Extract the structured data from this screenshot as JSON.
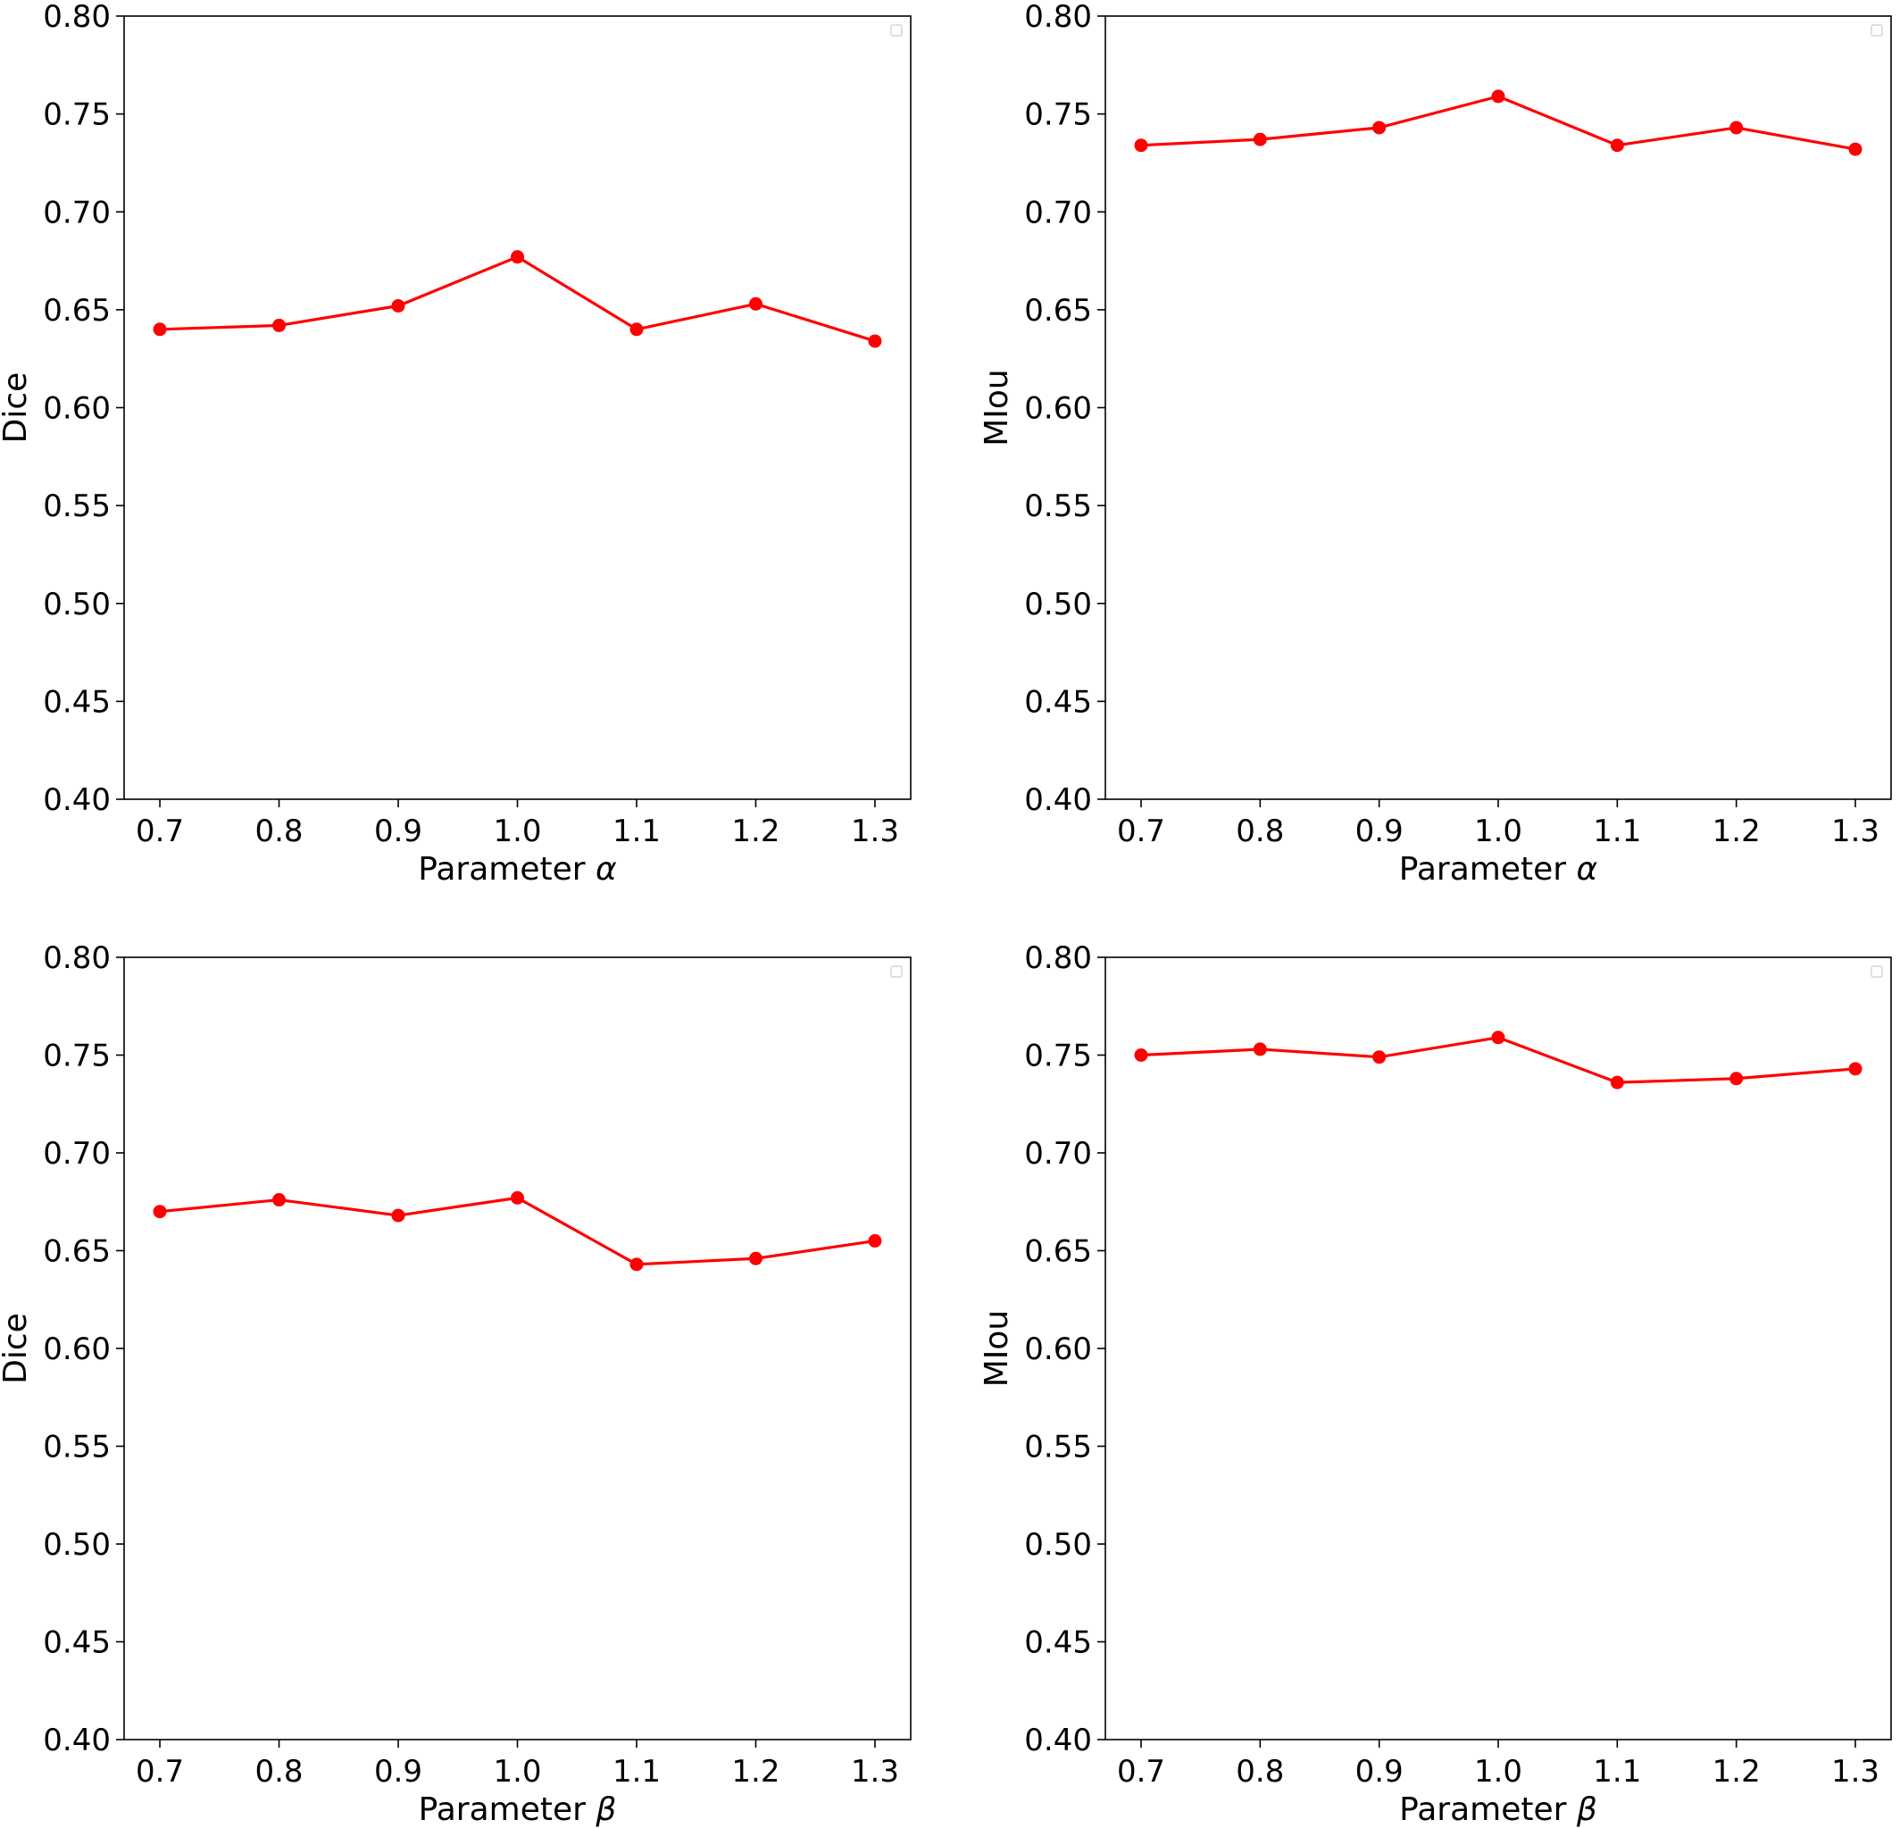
{
  "chart_data": [
    {
      "type": "line",
      "xlabel": "Parameter",
      "xlabel_symbol": "α",
      "ylabel": "Dice",
      "x": [
        0.7,
        0.8,
        0.9,
        1.0,
        1.1,
        1.2,
        1.3
      ],
      "x_tick_labels": [
        "0.7",
        "0.8",
        "0.9",
        "1.0",
        "1.1",
        "1.2",
        "1.3"
      ],
      "y_tick_labels": [
        "0.40",
        "0.45",
        "0.50",
        "0.55",
        "0.60",
        "0.65",
        "0.70",
        "0.75",
        "0.80"
      ],
      "ylim": [
        0.4,
        0.8
      ],
      "series": [
        {
          "values": [
            0.64,
            0.642,
            0.652,
            0.677,
            0.64,
            0.653,
            0.634
          ],
          "color": "#ff0000",
          "marker": "circle"
        }
      ],
      "legend": "top-right (empty)",
      "grid": false
    },
    {
      "type": "line",
      "xlabel": "Parameter",
      "xlabel_symbol": "α",
      "ylabel": "MIou",
      "x": [
        0.7,
        0.8,
        0.9,
        1.0,
        1.1,
        1.2,
        1.3
      ],
      "x_tick_labels": [
        "0.7",
        "0.8",
        "0.9",
        "1.0",
        "1.1",
        "1.2",
        "1.3"
      ],
      "y_tick_labels": [
        "0.40",
        "0.45",
        "0.50",
        "0.55",
        "0.60",
        "0.65",
        "0.70",
        "0.75",
        "0.80"
      ],
      "ylim": [
        0.4,
        0.8
      ],
      "series": [
        {
          "values": [
            0.734,
            0.737,
            0.743,
            0.759,
            0.734,
            0.743,
            0.732
          ],
          "color": "#ff0000",
          "marker": "circle"
        }
      ],
      "legend": "top-right (empty)",
      "grid": false
    },
    {
      "type": "line",
      "xlabel": "Parameter",
      "xlabel_symbol": "β",
      "ylabel": "Dice",
      "x": [
        0.7,
        0.8,
        0.9,
        1.0,
        1.1,
        1.2,
        1.3
      ],
      "x_tick_labels": [
        "0.7",
        "0.8",
        "0.9",
        "1.0",
        "1.1",
        "1.2",
        "1.3"
      ],
      "y_tick_labels": [
        "0.40",
        "0.45",
        "0.50",
        "0.55",
        "0.60",
        "0.65",
        "0.70",
        "0.75",
        "0.80"
      ],
      "ylim": [
        0.4,
        0.8
      ],
      "series": [
        {
          "values": [
            0.67,
            0.676,
            0.668,
            0.677,
            0.643,
            0.646,
            0.655
          ],
          "color": "#ff0000",
          "marker": "circle"
        }
      ],
      "legend": "top-right (empty)",
      "grid": false
    },
    {
      "type": "line",
      "xlabel": "Parameter",
      "xlabel_symbol": "β",
      "ylabel": "MIou",
      "x": [
        0.7,
        0.8,
        0.9,
        1.0,
        1.1,
        1.2,
        1.3
      ],
      "x_tick_labels": [
        "0.7",
        "0.8",
        "0.9",
        "1.0",
        "1.1",
        "1.2",
        "1.3"
      ],
      "y_tick_labels": [
        "0.40",
        "0.45",
        "0.50",
        "0.55",
        "0.60",
        "0.65",
        "0.70",
        "0.75",
        "0.80"
      ],
      "ylim": [
        0.4,
        0.8
      ],
      "series": [
        {
          "values": [
            0.75,
            0.753,
            0.749,
            0.759,
            0.736,
            0.738,
            0.743
          ],
          "color": "#ff0000",
          "marker": "circle"
        }
      ],
      "legend": "top-right (empty)",
      "grid": false
    }
  ]
}
